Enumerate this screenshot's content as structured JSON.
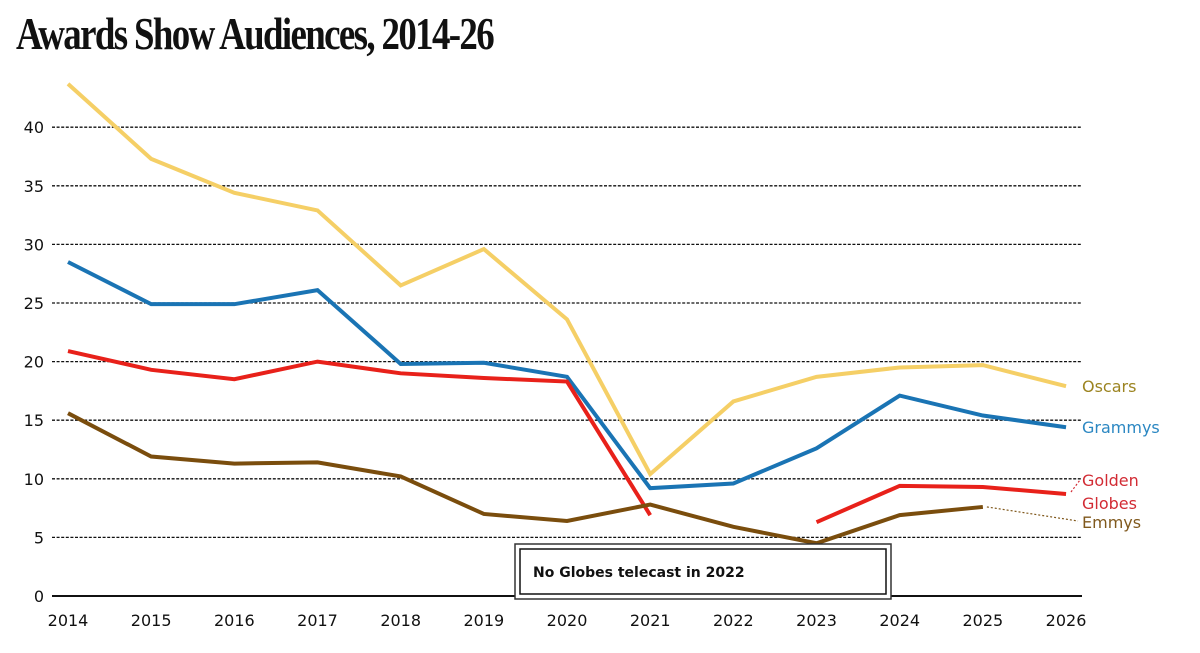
{
  "chart_data": {
    "type": "line",
    "title": "Awards Show Audiences, 2014-26",
    "xlabel": "",
    "ylabel": "",
    "x": [
      "2014",
      "2015",
      "2016",
      "2017",
      "2018",
      "2019",
      "2020",
      "2021",
      "2022",
      "2023",
      "2024",
      "2025",
      "2026"
    ],
    "ylim": [
      0,
      45
    ],
    "yticks": [
      "0",
      "5",
      "10",
      "15",
      "20",
      "25",
      "30",
      "35",
      "40"
    ],
    "ytick_values": [
      0,
      5,
      10,
      15,
      20,
      25,
      30,
      35,
      40
    ],
    "grid": "horizontal dotted",
    "series": [
      {
        "name": "Oscars",
        "label": "Oscars",
        "color": "#F5CF66",
        "label_color": "#9C8421",
        "values": [
          43.7,
          37.3,
          34.4,
          32.9,
          26.5,
          29.6,
          23.6,
          10.4,
          16.6,
          18.7,
          19.5,
          19.7,
          17.9
        ]
      },
      {
        "name": "Grammys",
        "label": "Grammys",
        "color": "#1A74B4",
        "label_color": "#2B87C2",
        "values": [
          28.5,
          24.9,
          24.9,
          26.1,
          19.8,
          19.9,
          18.7,
          9.2,
          9.6,
          12.6,
          17.1,
          15.4,
          14.4
        ]
      },
      {
        "name": "Golden Globes",
        "label_lines": [
          "Golden",
          "Globes"
        ],
        "color": "#E8211A",
        "label_color": "#D22B34",
        "values": [
          20.9,
          19.3,
          18.5,
          20.0,
          19.0,
          18.6,
          18.3,
          6.9,
          null,
          6.3,
          9.4,
          9.3,
          8.7
        ]
      },
      {
        "name": "Emmys",
        "label": "Emmys",
        "color": "#7A4D0D",
        "label_color": "#80591D",
        "values": [
          15.6,
          11.9,
          11.3,
          11.4,
          10.2,
          7.0,
          6.4,
          7.8,
          5.9,
          4.5,
          6.9,
          7.6,
          null
        ]
      }
    ],
    "annotations": [
      {
        "text": "No Globes telecast in 2022"
      }
    ],
    "legend": "direct labels at right end of lines"
  }
}
